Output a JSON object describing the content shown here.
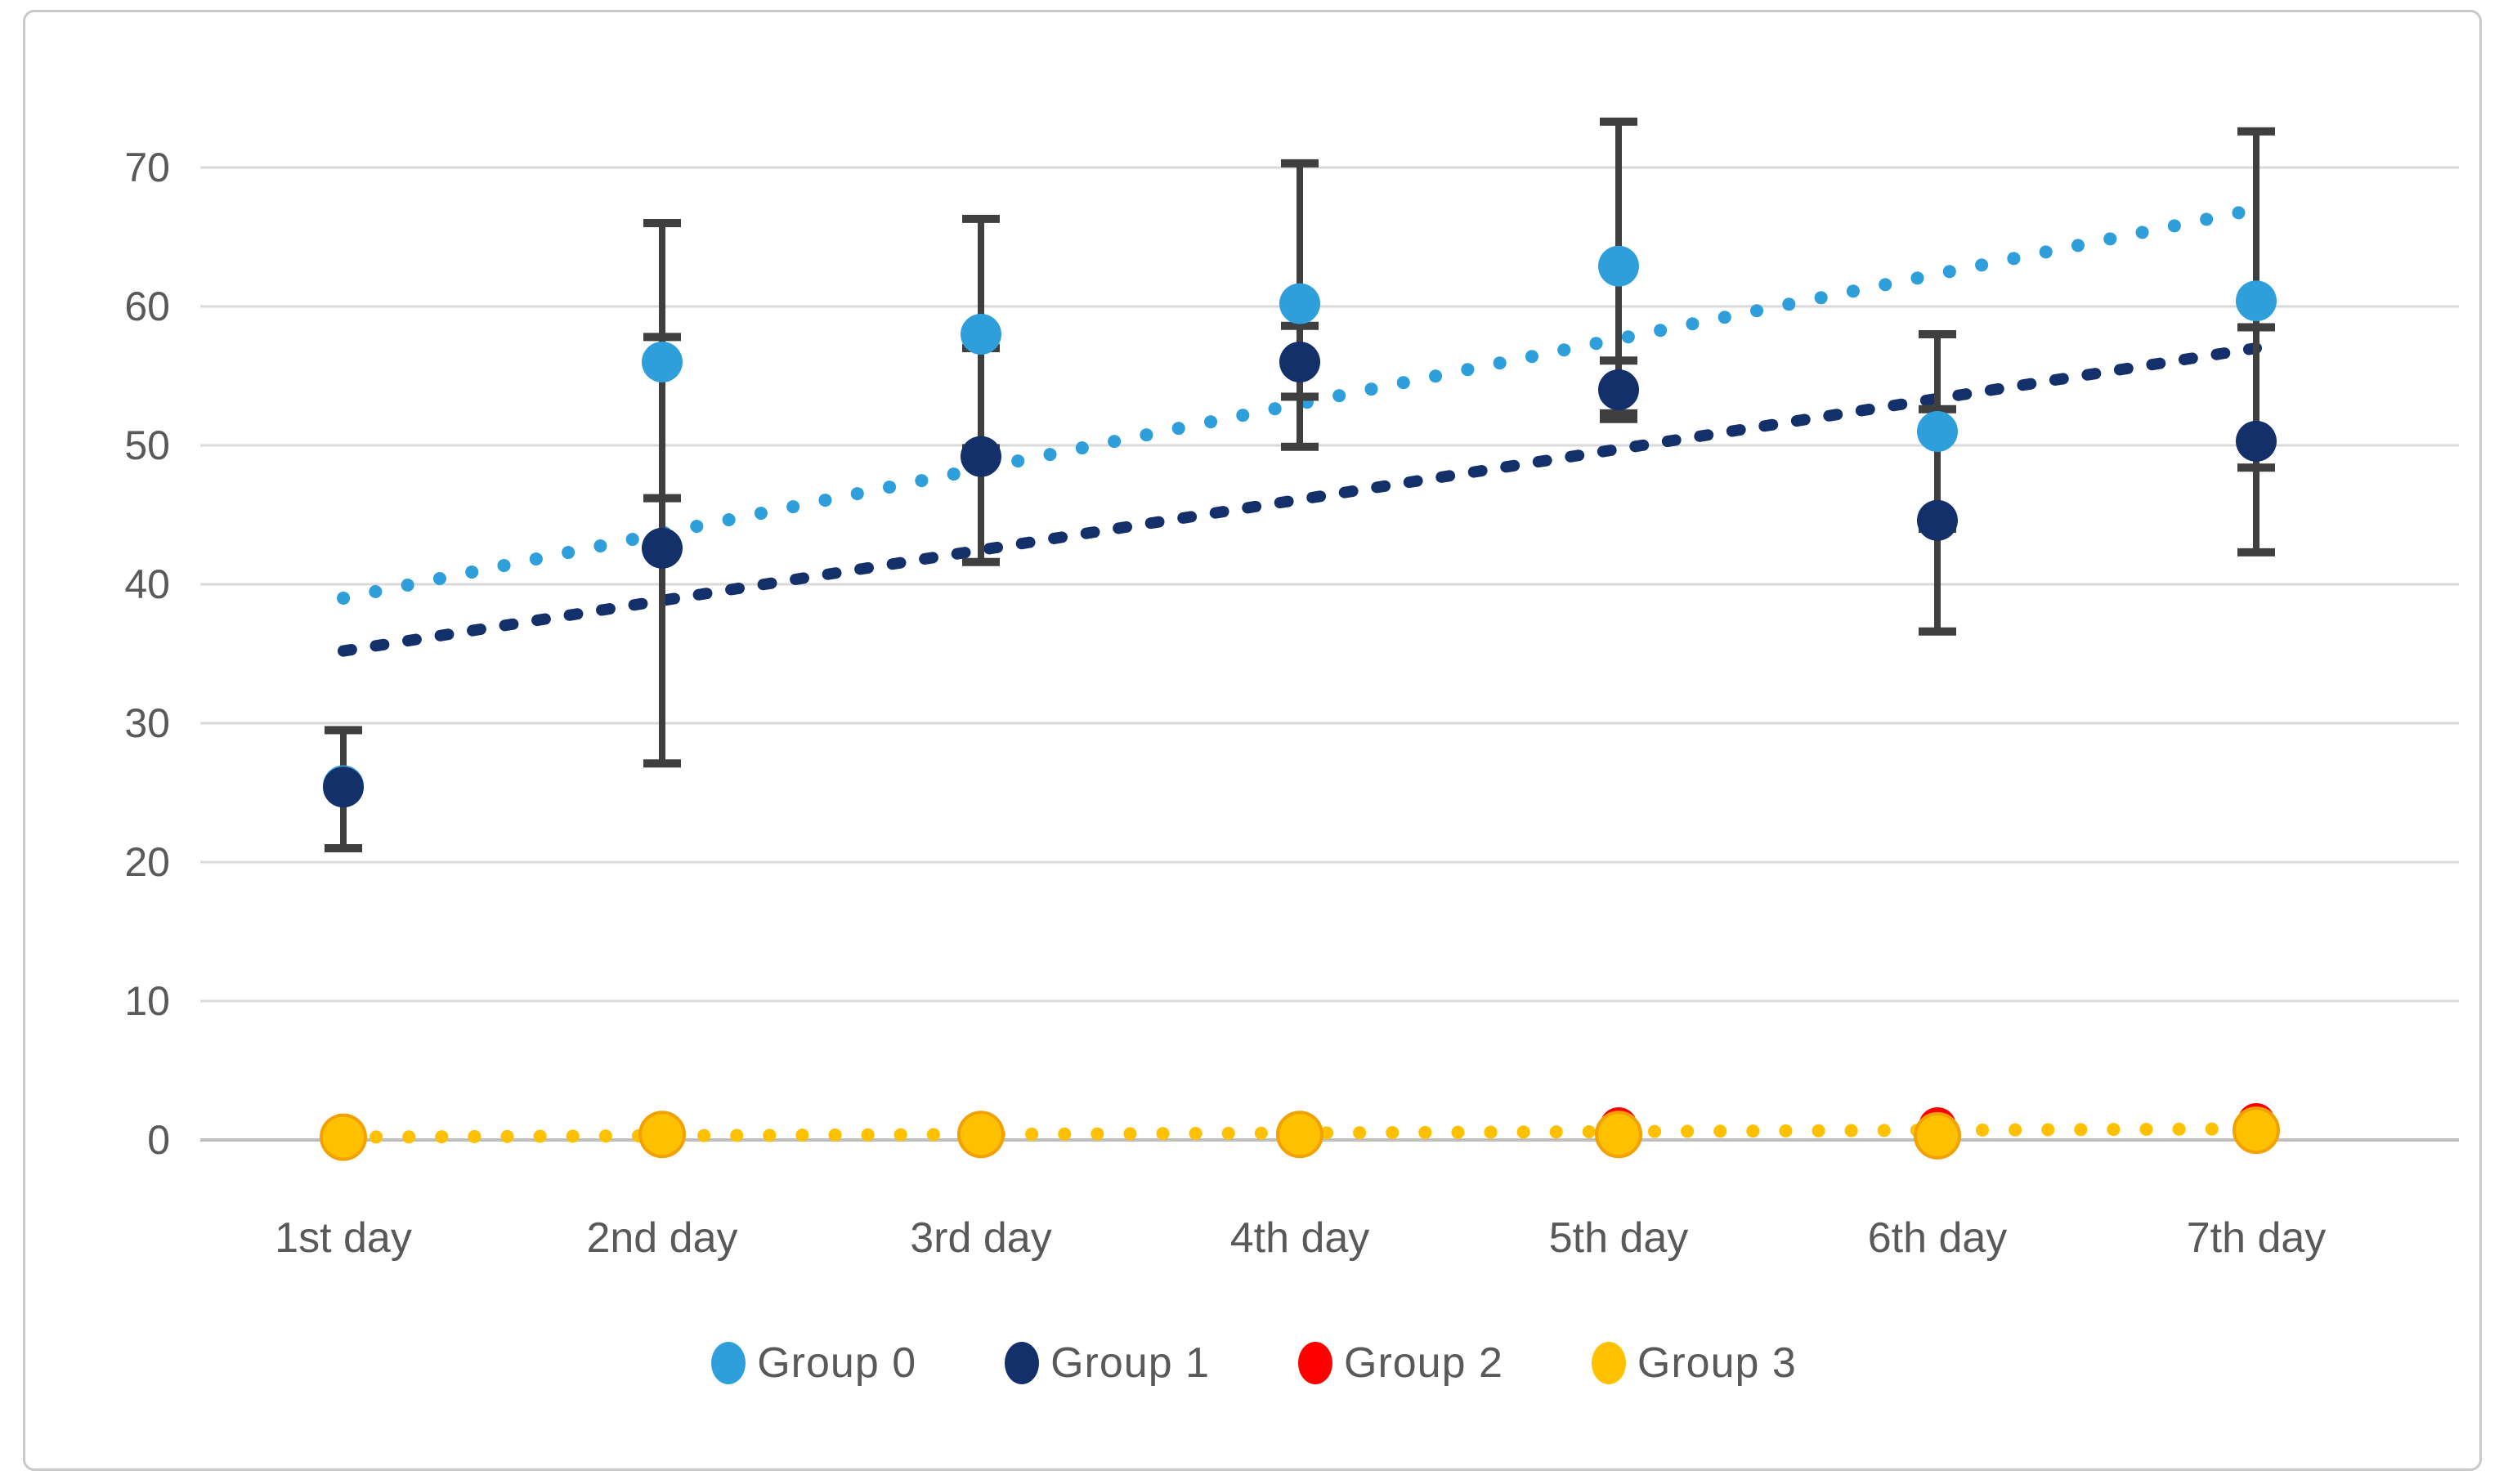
{
  "chart_data": {
    "type": "scatter",
    "title": "",
    "xlabel": "",
    "ylabel": "",
    "categories": [
      "1st day",
      "2nd day",
      "3rd day",
      "4th day",
      "5th day",
      "6th day",
      "7th day"
    ],
    "y_axis": {
      "min": 0,
      "max": 70,
      "step": 10,
      "tick_labels": [
        "0",
        "10",
        "20",
        "30",
        "40",
        "50",
        "60",
        "70"
      ],
      "grid": true
    },
    "series": [
      {
        "name": "Group 0",
        "color": "#2F9FDC",
        "marker_radius": 25,
        "values": [
          25.5,
          56,
          58,
          60.2,
          62.9,
          51,
          60.4
        ],
        "err_low": [
          21,
          46.2,
          49.8,
          49.9,
          52.3,
          44,
          48.4
        ],
        "err_high": [
          29.5,
          66,
          66.3,
          70.3,
          73.3,
          58,
          72.6
        ],
        "trend": {
          "from": 39,
          "to": 67,
          "style": "dot"
        }
      },
      {
        "name": "Group 1",
        "color": "#14306B",
        "marker_radius": 25,
        "values": [
          25.4,
          42.6,
          49.2,
          56,
          54,
          44.6,
          50.3
        ],
        "err_low": [
          21,
          27.1,
          41.6,
          53.5,
          51.9,
          36.6,
          42.3
        ],
        "err_high": [
          29.5,
          57.8,
          57,
          58.6,
          56.1,
          52.6,
          58.5
        ],
        "trend": {
          "from": 35.2,
          "to": 57,
          "style": "dash-dot"
        }
      },
      {
        "name": "Group 2",
        "color": "#FF0000",
        "marker_radius": 23,
        "values": [
          0.3,
          0.4,
          0.4,
          0.5,
          1.0,
          1.0,
          1.3
        ]
      },
      {
        "name": "Group 3",
        "color": "#FFC000",
        "marker_stroke": "#F2A100",
        "marker_radius": 27,
        "values": [
          0.2,
          0.4,
          0.4,
          0.4,
          0.4,
          0.3,
          0.7
        ],
        "trend": {
          "from": 0.2,
          "to": 0.8,
          "style": "dot"
        }
      }
    ],
    "legend": {
      "position": "bottom",
      "items": [
        "Group 0",
        "Group 1",
        "Group 2",
        "Group 3"
      ]
    },
    "colors": {
      "grid": "#D9D9D9",
      "zero_line": "#BFBFBF",
      "error_bar": "#3F3F3F",
      "text": "#595959",
      "border": "#C9C9C9",
      "background": "#FFFFFF"
    }
  }
}
